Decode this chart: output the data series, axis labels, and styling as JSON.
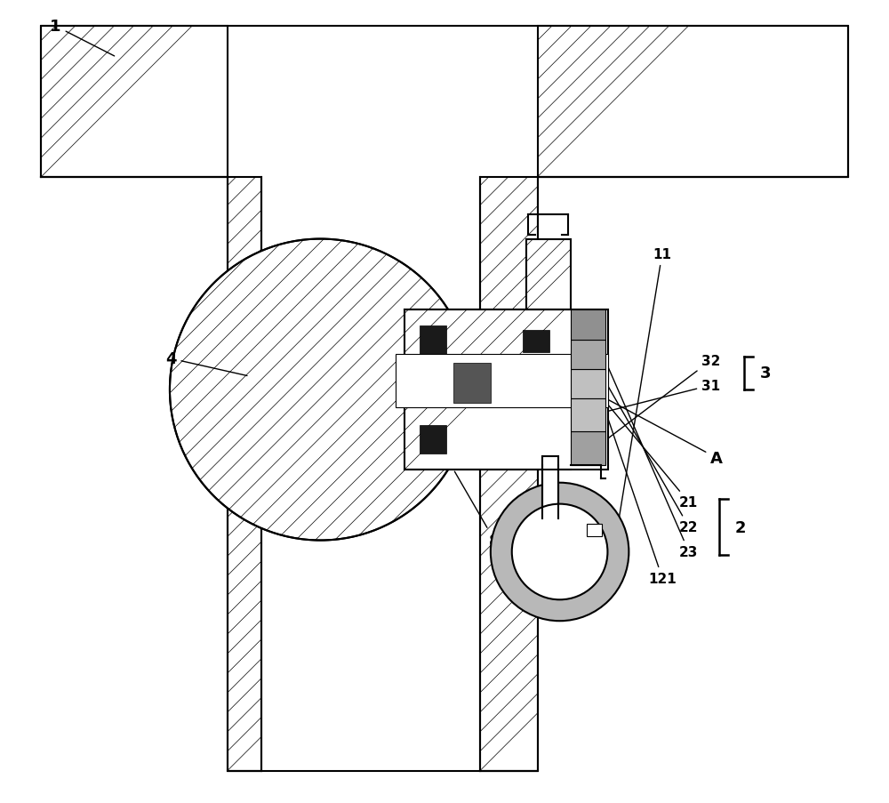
{
  "bg_color": "#ffffff",
  "line_color": "#000000",
  "dark_fill": "#1a1a1a",
  "gray_fill": "#b8b8b8",
  "label_fontsize": 13
}
